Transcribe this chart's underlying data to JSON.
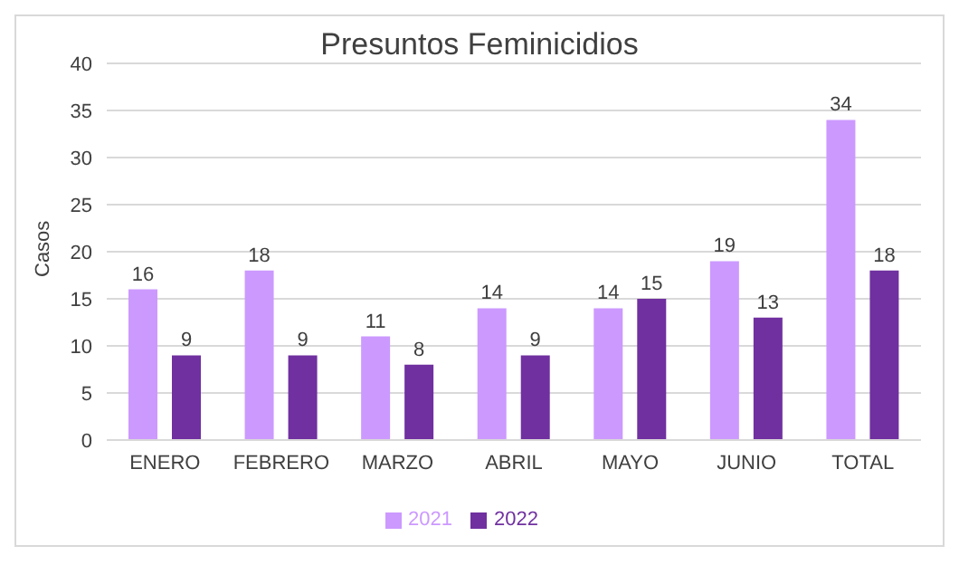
{
  "chart_data": {
    "type": "bar",
    "title": "Presuntos Feminicidios",
    "ylabel": "Casos",
    "categories": [
      "ENERO",
      "FEBRERO",
      "MARZO",
      "ABRIL",
      "MAYO",
      "JUNIO",
      "TOTAL"
    ],
    "series": [
      {
        "name": "2021",
        "color": "#cc99ff",
        "values": [
          16,
          18,
          11,
          14,
          14,
          19,
          34
        ]
      },
      {
        "name": "2022",
        "color": "#7030a0",
        "values": [
          9,
          9,
          8,
          9,
          15,
          13,
          18
        ]
      }
    ],
    "ylim": [
      0,
      40
    ],
    "yticks": [
      0,
      5,
      10,
      15,
      20,
      25,
      30,
      35,
      40
    ],
    "grid": "y",
    "legend": "bottom",
    "data_labels": true
  }
}
